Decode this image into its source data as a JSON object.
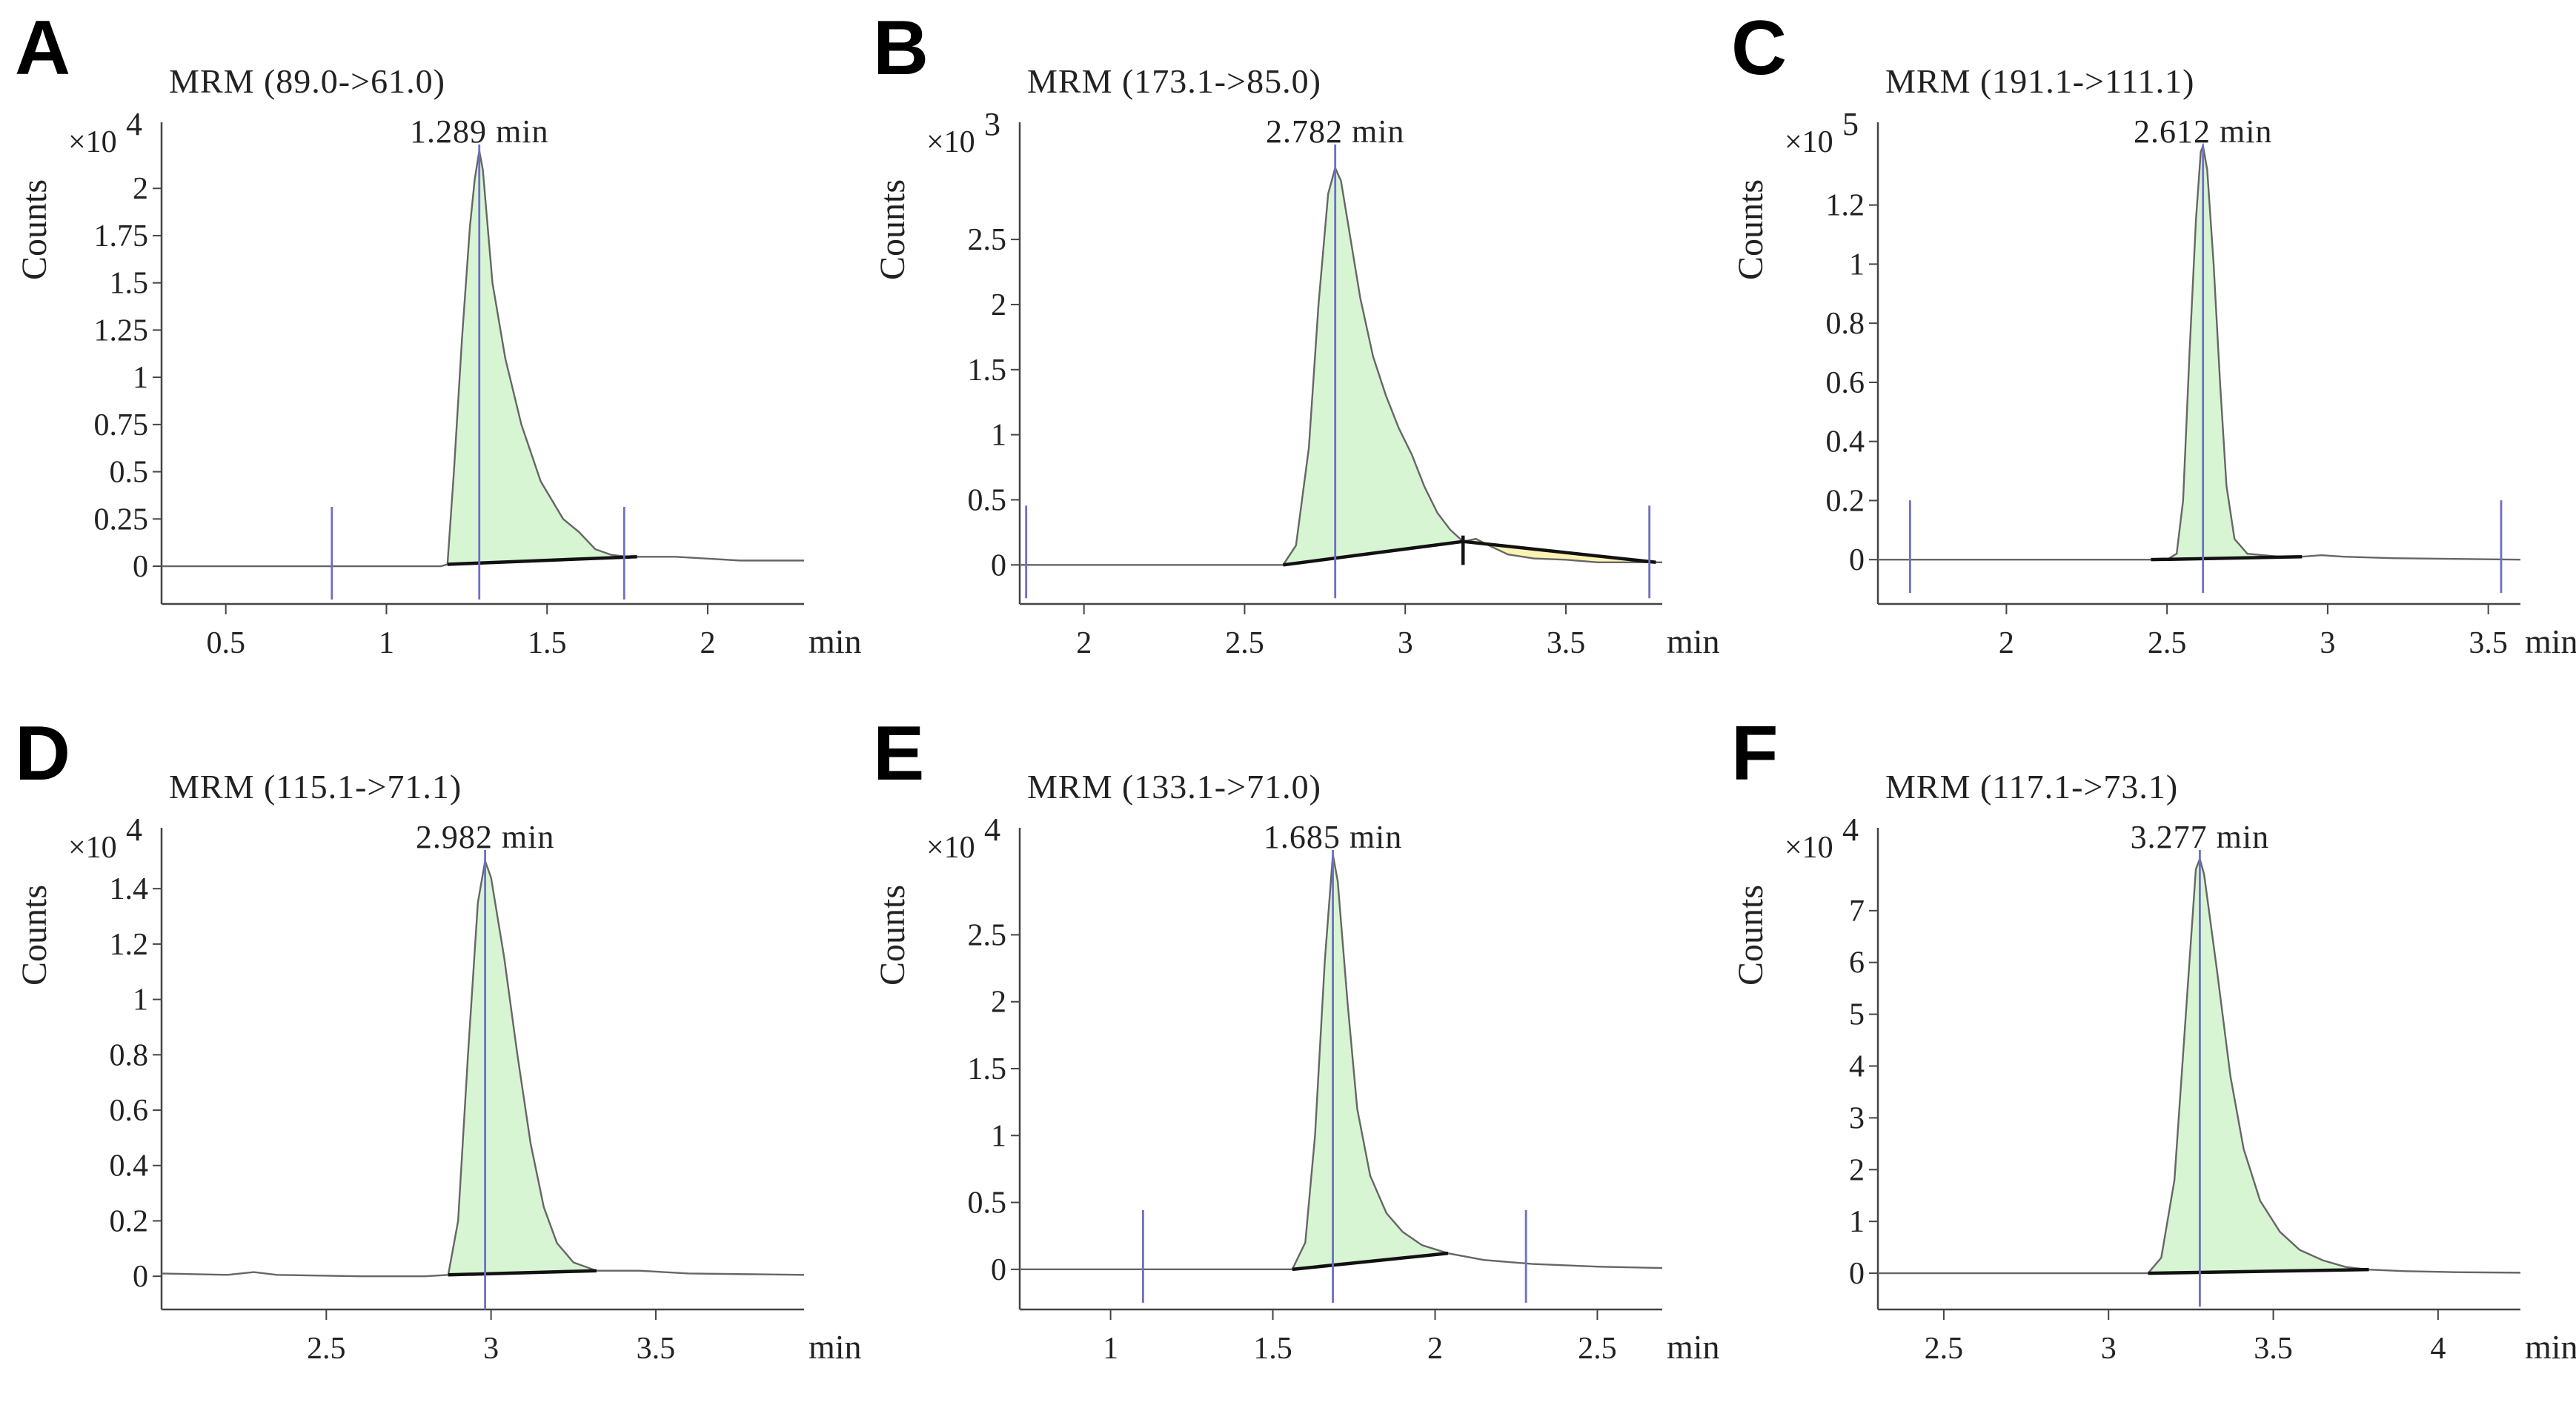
{
  "chart_data": [
    {
      "type": "line",
      "panel": "A",
      "title": "MRM (89.0->61.0)",
      "ylabel": "Counts",
      "y_exponent": "4",
      "xunit": "min",
      "peak_label": "1.289 min",
      "xlim": [
        0.3,
        2.3
      ],
      "ylim": [
        -0.2,
        2.35
      ],
      "xticks": [
        0.5,
        1,
        1.5,
        2
      ],
      "xtick_labels": [
        "0.5",
        "1",
        "1.5",
        "2"
      ],
      "yticks": [
        0,
        0.25,
        0.5,
        0.75,
        1,
        1.25,
        1.5,
        1.75,
        2
      ],
      "ytick_labels": [
        "0",
        "0.25",
        "0.5",
        "0.75",
        "1",
        "1.25",
        "1.5",
        "1.75",
        "2"
      ],
      "peak_rt": 1.289,
      "integration": [
        [
          1.19,
          1.78
        ]
      ],
      "split": null,
      "markers": [
        0.83,
        1.289,
        1.74
      ],
      "trace": [
        [
          0.3,
          0
        ],
        [
          1.0,
          0
        ],
        [
          1.17,
          0.0
        ],
        [
          1.19,
          0.01
        ],
        [
          1.21,
          0.5
        ],
        [
          1.235,
          1.2
        ],
        [
          1.26,
          1.8
        ],
        [
          1.275,
          2.05
        ],
        [
          1.289,
          2.2
        ],
        [
          1.3,
          2.1
        ],
        [
          1.33,
          1.5
        ],
        [
          1.37,
          1.1
        ],
        [
          1.42,
          0.75
        ],
        [
          1.48,
          0.45
        ],
        [
          1.55,
          0.25
        ],
        [
          1.6,
          0.18
        ],
        [
          1.65,
          0.09
        ],
        [
          1.7,
          0.06
        ],
        [
          1.75,
          0.05
        ],
        [
          1.8,
          0.05
        ],
        [
          1.9,
          0.05
        ],
        [
          2.0,
          0.04
        ],
        [
          2.1,
          0.03
        ],
        [
          2.3,
          0.03
        ]
      ]
    },
    {
      "type": "line",
      "panel": "B",
      "title": "MRM (173.1->85.0)",
      "ylabel": "Counts",
      "y_exponent": "3",
      "xunit": "min",
      "peak_label": "2.782 min",
      "xlim": [
        1.8,
        3.8
      ],
      "ylim": [
        -0.3,
        3.4
      ],
      "xticks": [
        2,
        2.5,
        3,
        3.5
      ],
      "xtick_labels": [
        "2",
        "2.5",
        "3",
        "3.5"
      ],
      "yticks": [
        0,
        0.5,
        1,
        1.5,
        2,
        2.5
      ],
      "ytick_labels": [
        "0",
        "0.5",
        "1",
        "1.5",
        "2",
        "2.5"
      ],
      "peak_rt": 2.782,
      "integration": [
        [
          2.62,
          3.18
        ],
        [
          3.18,
          3.78
        ]
      ],
      "split": 3.18,
      "markers": [
        1.82,
        2.782,
        3.76
      ],
      "trace": [
        [
          1.8,
          0
        ],
        [
          2.55,
          0
        ],
        [
          2.62,
          0.0
        ],
        [
          2.66,
          0.15
        ],
        [
          2.7,
          0.9
        ],
        [
          2.73,
          2.0
        ],
        [
          2.76,
          2.85
        ],
        [
          2.782,
          3.05
        ],
        [
          2.8,
          2.95
        ],
        [
          2.83,
          2.5
        ],
        [
          2.86,
          2.05
        ],
        [
          2.9,
          1.6
        ],
        [
          2.94,
          1.3
        ],
        [
          2.98,
          1.05
        ],
        [
          3.02,
          0.85
        ],
        [
          3.06,
          0.6
        ],
        [
          3.1,
          0.4
        ],
        [
          3.14,
          0.27
        ],
        [
          3.18,
          0.18
        ],
        [
          3.22,
          0.2
        ],
        [
          3.26,
          0.15
        ],
        [
          3.32,
          0.08
        ],
        [
          3.4,
          0.05
        ],
        [
          3.5,
          0.04
        ],
        [
          3.6,
          0.02
        ],
        [
          3.8,
          0.02
        ]
      ]
    },
    {
      "type": "line",
      "panel": "C",
      "title": "MRM (191.1->111.1)",
      "ylabel": "Counts",
      "y_exponent": "5",
      "xunit": "min",
      "peak_label": "2.612 min",
      "xlim": [
        1.6,
        3.6
      ],
      "ylim": [
        -0.15,
        1.48
      ],
      "xticks": [
        2,
        2.5,
        3,
        3.5
      ],
      "xtick_labels": [
        "2",
        "2.5",
        "3",
        "3.5"
      ],
      "yticks": [
        0,
        0.2,
        0.4,
        0.6,
        0.8,
        1,
        1.2
      ],
      "ytick_labels": [
        "0",
        "0.2",
        "0.4",
        "0.6",
        "0.8",
        "1",
        "1.2"
      ],
      "peak_rt": 2.612,
      "integration": [
        [
          2.45,
          2.92
        ]
      ],
      "split": null,
      "markers": [
        1.7,
        2.612,
        3.54
      ],
      "trace": [
        [
          1.6,
          0
        ],
        [
          2.4,
          0
        ],
        [
          2.5,
          0.0
        ],
        [
          2.53,
          0.02
        ],
        [
          2.55,
          0.2
        ],
        [
          2.57,
          0.7
        ],
        [
          2.59,
          1.15
        ],
        [
          2.605,
          1.38
        ],
        [
          2.612,
          1.4
        ],
        [
          2.625,
          1.32
        ],
        [
          2.645,
          1.0
        ],
        [
          2.665,
          0.6
        ],
        [
          2.685,
          0.25
        ],
        [
          2.71,
          0.07
        ],
        [
          2.75,
          0.02
        ],
        [
          2.85,
          0.01
        ],
        [
          2.92,
          0.01
        ],
        [
          2.98,
          0.015
        ],
        [
          3.05,
          0.01
        ],
        [
          3.2,
          0.005
        ],
        [
          3.6,
          0
        ]
      ]
    },
    {
      "type": "line",
      "panel": "D",
      "title": "MRM (115.1->71.1)",
      "ylabel": "Counts",
      "y_exponent": "4",
      "xunit": "min",
      "peak_label": "2.982 min",
      "xlim": [
        2.0,
        3.95
      ],
      "ylim": [
        -0.12,
        1.62
      ],
      "xticks": [
        2.5,
        3,
        3.5
      ],
      "xtick_labels": [
        "2.5",
        "3",
        "3.5"
      ],
      "yticks": [
        0,
        0.2,
        0.4,
        0.6,
        0.8,
        1,
        1.2,
        1.4
      ],
      "ytick_labels": [
        "0",
        "0.2",
        "0.4",
        "0.6",
        "0.8",
        "1",
        "1.2",
        "1.4"
      ],
      "peak_rt": 2.982,
      "integration": [
        [
          2.87,
          3.32
        ]
      ],
      "split": null,
      "markers": [
        2.982
      ],
      "trace": [
        [
          2.0,
          0.01
        ],
        [
          2.2,
          0.005
        ],
        [
          2.28,
          0.015
        ],
        [
          2.35,
          0.005
        ],
        [
          2.6,
          0.0
        ],
        [
          2.8,
          0.0
        ],
        [
          2.87,
          0.005
        ],
        [
          2.9,
          0.2
        ],
        [
          2.93,
          0.8
        ],
        [
          2.96,
          1.35
        ],
        [
          2.982,
          1.5
        ],
        [
          3.0,
          1.44
        ],
        [
          3.04,
          1.15
        ],
        [
          3.08,
          0.8
        ],
        [
          3.12,
          0.48
        ],
        [
          3.16,
          0.25
        ],
        [
          3.2,
          0.12
        ],
        [
          3.25,
          0.05
        ],
        [
          3.32,
          0.02
        ],
        [
          3.45,
          0.02
        ],
        [
          3.6,
          0.01
        ],
        [
          3.95,
          0.005
        ]
      ]
    },
    {
      "type": "line",
      "panel": "E",
      "title": "MRM (133.1->71.0)",
      "ylabel": "Counts",
      "y_exponent": "4",
      "xunit": "min",
      "peak_label": "1.685 min",
      "xlim": [
        0.72,
        2.7
      ],
      "ylim": [
        -0.3,
        3.3
      ],
      "xticks": [
        1,
        1.5,
        2,
        2.5
      ],
      "xtick_labels": [
        "1",
        "1.5",
        "2",
        "2.5"
      ],
      "yticks": [
        0,
        0.5,
        1,
        1.5,
        2,
        2.5
      ],
      "ytick_labels": [
        "0",
        "0.5",
        "1",
        "1.5",
        "2",
        "2.5"
      ],
      "peak_rt": 1.685,
      "integration": [
        [
          1.56,
          2.04
        ]
      ],
      "split": null,
      "markers": [
        1.1,
        1.685,
        2.28
      ],
      "trace": [
        [
          0.72,
          0
        ],
        [
          1.5,
          0
        ],
        [
          1.56,
          0.0
        ],
        [
          1.6,
          0.2
        ],
        [
          1.63,
          1.0
        ],
        [
          1.66,
          2.3
        ],
        [
          1.685,
          3.1
        ],
        [
          1.7,
          2.9
        ],
        [
          1.73,
          2.0
        ],
        [
          1.76,
          1.2
        ],
        [
          1.8,
          0.7
        ],
        [
          1.85,
          0.42
        ],
        [
          1.9,
          0.28
        ],
        [
          1.96,
          0.18
        ],
        [
          2.04,
          0.12
        ],
        [
          2.15,
          0.07
        ],
        [
          2.3,
          0.04
        ],
        [
          2.5,
          0.02
        ],
        [
          2.7,
          0.01
        ]
      ]
    },
    {
      "type": "line",
      "panel": "F",
      "title": "MRM (117.1->73.1)",
      "ylabel": "Counts",
      "y_exponent": "4",
      "xunit": "min",
      "peak_label": "3.277 min",
      "xlim": [
        2.3,
        4.25
      ],
      "ylim": [
        -0.7,
        8.6
      ],
      "xticks": [
        2.5,
        3,
        3.5,
        4
      ],
      "xtick_labels": [
        "2.5",
        "3",
        "3.5",
        "4"
      ],
      "yticks": [
        0,
        1,
        2,
        3,
        4,
        5,
        6,
        7
      ],
      "ytick_labels": [
        "0",
        "1",
        "2",
        "3",
        "4",
        "5",
        "6",
        "7"
      ],
      "peak_rt": 3.277,
      "integration": [
        [
          3.12,
          3.79
        ]
      ],
      "split": null,
      "markers": [
        3.277
      ],
      "trace": [
        [
          2.3,
          0
        ],
        [
          3.0,
          0
        ],
        [
          3.12,
          0.0
        ],
        [
          3.16,
          0.3
        ],
        [
          3.2,
          1.8
        ],
        [
          3.24,
          5.5
        ],
        [
          3.265,
          7.8
        ],
        [
          3.277,
          8.0
        ],
        [
          3.29,
          7.7
        ],
        [
          3.33,
          5.8
        ],
        [
          3.37,
          3.8
        ],
        [
          3.41,
          2.4
        ],
        [
          3.46,
          1.4
        ],
        [
          3.52,
          0.8
        ],
        [
          3.58,
          0.45
        ],
        [
          3.65,
          0.25
        ],
        [
          3.72,
          0.12
        ],
        [
          3.79,
          0.07
        ],
        [
          3.9,
          0.04
        ],
        [
          4.05,
          0.02
        ],
        [
          4.25,
          0.01
        ]
      ]
    }
  ]
}
